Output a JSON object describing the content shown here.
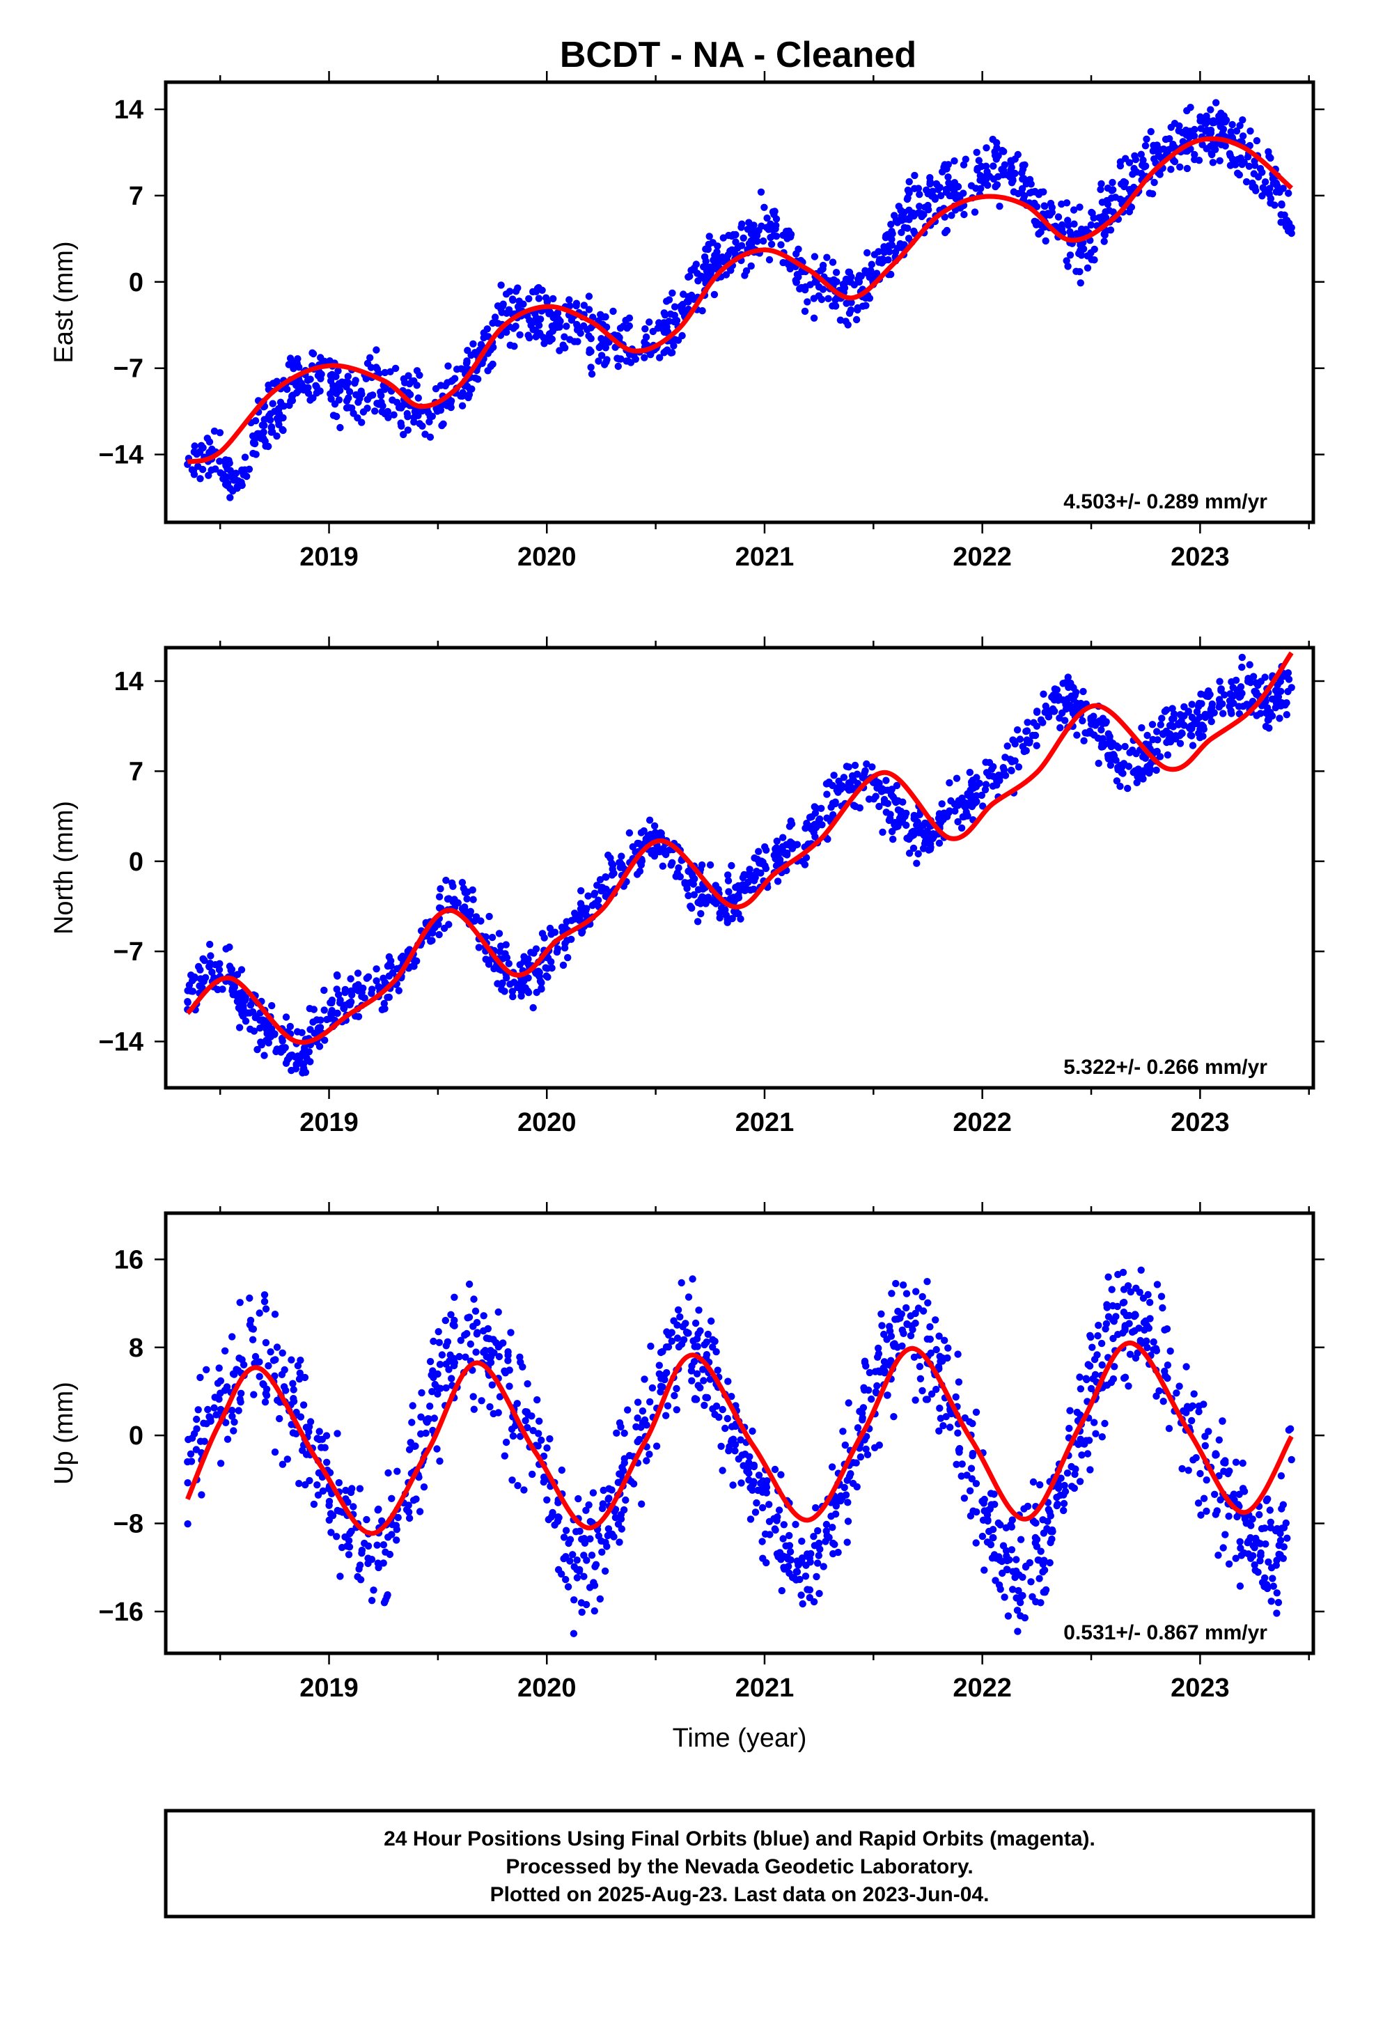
{
  "title": "BCDT  - NA - Cleaned",
  "xlabel": "Time (year)",
  "footer": {
    "line1": "24 Hour Positions Using Final Orbits (blue) and Rapid Orbits (magenta).",
    "line2": "Processed by the Nevada Geodetic Laboratory.",
    "line3": "Plotted on 2025-Aug-23. Last data on 2023-Jun-04."
  },
  "colors": {
    "points": "#0000ff",
    "fit": "#ff0000",
    "frame": "#000000"
  },
  "chart_data": [
    {
      "type": "scatter",
      "ylabel": "East (mm)",
      "rate": "4.503+/- 0.289 mm/yr",
      "xlim": [
        2018.25,
        2023.52
      ],
      "ylim": [
        -19.5,
        16.2
      ],
      "xticks": [
        2019,
        2020,
        2021,
        2022,
        2023
      ],
      "xtick_labels": [
        "2019",
        "2020",
        "2021",
        "2022",
        "2023"
      ],
      "yticks": [
        -14,
        -7,
        0,
        7,
        14
      ],
      "ytick_labels": [
        "−14",
        "−7",
        "0",
        "7",
        "14"
      ],
      "grid": false,
      "series": [
        {
          "kind": "points",
          "color": "#0000ff",
          "x": [
            2018.35,
            2018.45,
            2018.55,
            2018.6,
            2018.65,
            2018.75,
            2018.85,
            2018.95,
            2019.05,
            2019.15,
            2019.25,
            2019.35,
            2019.45,
            2019.55,
            2019.65,
            2019.75,
            2019.8,
            2019.85,
            2019.95,
            2020.05,
            2020.15,
            2020.25,
            2020.35,
            2020.45,
            2020.55,
            2020.65,
            2020.75,
            2020.85,
            2020.95,
            2021.05,
            2021.15,
            2021.25,
            2021.35,
            2021.45,
            2021.55,
            2021.65,
            2021.75,
            2021.85,
            2021.95,
            2022.05,
            2022.15,
            2022.25,
            2022.35,
            2022.45,
            2022.55,
            2022.65,
            2022.75,
            2022.85,
            2022.95,
            2023.05,
            2023.15,
            2023.25,
            2023.35,
            2023.42
          ],
          "y": [
            -14.8,
            -13.9,
            -15.8,
            -16.5,
            -12.5,
            -10.5,
            -8.2,
            -7.6,
            -8.8,
            -9.1,
            -8.4,
            -9.9,
            -10.3,
            -9.5,
            -7.2,
            -4.9,
            -1.8,
            -2.6,
            -3.0,
            -3.4,
            -3.8,
            -4.6,
            -5.1,
            -5.3,
            -4.1,
            -1.2,
            1.2,
            2.6,
            3.7,
            4.3,
            0.6,
            -0.4,
            -0.9,
            -0.6,
            2.4,
            5.1,
            6.2,
            7.0,
            7.8,
            9.4,
            8.8,
            6.1,
            4.1,
            3.0,
            4.9,
            7.8,
            9.4,
            10.4,
            11.9,
            12.3,
            11.4,
            9.8,
            7.3,
            4.4
          ]
        },
        {
          "kind": "fit",
          "color": "#ff0000",
          "x": [
            2018.35,
            2018.5,
            2018.75,
            2019.0,
            2019.25,
            2019.42,
            2019.6,
            2019.8,
            2020.0,
            2020.2,
            2020.4,
            2020.6,
            2020.8,
            2021.0,
            2021.2,
            2021.4,
            2021.6,
            2021.8,
            2022.0,
            2022.2,
            2022.4,
            2022.6,
            2022.8,
            2023.0,
            2023.2,
            2023.42
          ],
          "y": [
            -14.6,
            -13.8,
            -8.8,
            -6.8,
            -8.0,
            -10.1,
            -8.4,
            -3.6,
            -2.0,
            -3.2,
            -5.6,
            -3.9,
            0.9,
            2.6,
            1.0,
            -1.3,
            1.6,
            5.4,
            6.9,
            6.2,
            3.4,
            5.1,
            9.2,
            11.5,
            10.9,
            7.6
          ]
        }
      ]
    },
    {
      "type": "scatter",
      "ylabel": "North (mm)",
      "rate": "5.322+/- 0.266 mm/yr",
      "xlim": [
        2018.25,
        2023.52
      ],
      "ylim": [
        -17.6,
        16.6
      ],
      "xticks": [
        2019,
        2020,
        2021,
        2022,
        2023
      ],
      "xtick_labels": [
        "2019",
        "2020",
        "2021",
        "2022",
        "2023"
      ],
      "yticks": [
        -14,
        -7,
        0,
        7,
        14
      ],
      "ytick_labels": [
        "−14",
        "−7",
        "0",
        "7",
        "14"
      ],
      "grid": false,
      "series": [
        {
          "kind": "points",
          "color": "#0000ff",
          "x": [
            2018.35,
            2018.45,
            2018.55,
            2018.65,
            2018.75,
            2018.85,
            2018.95,
            2019.05,
            2019.15,
            2019.25,
            2019.35,
            2019.45,
            2019.55,
            2019.65,
            2019.75,
            2019.85,
            2019.95,
            2020.05,
            2020.15,
            2020.25,
            2020.35,
            2020.45,
            2020.55,
            2020.65,
            2020.75,
            2020.85,
            2020.95,
            2021.05,
            2021.15,
            2021.25,
            2021.35,
            2021.45,
            2021.55,
            2021.65,
            2021.75,
            2021.85,
            2021.95,
            2022.05,
            2022.15,
            2022.25,
            2022.35,
            2022.45,
            2022.55,
            2022.65,
            2022.75,
            2022.85,
            2022.95,
            2023.05,
            2023.15,
            2023.25,
            2023.35,
            2023.42
          ],
          "y": [
            -10.9,
            -8.2,
            -9.4,
            -11.7,
            -13.4,
            -15.2,
            -13.0,
            -11.0,
            -10.5,
            -9.8,
            -7.6,
            -5.8,
            -2.9,
            -3.9,
            -7.2,
            -9.4,
            -8.7,
            -6.8,
            -4.6,
            -2.3,
            -0.5,
            1.4,
            1.6,
            -1.7,
            -3.0,
            -3.1,
            -1.1,
            0.2,
            1.3,
            3.2,
            5.6,
            6.5,
            4.8,
            2.8,
            1.9,
            3.9,
            5.0,
            6.6,
            7.8,
            10.5,
            12.8,
            11.8,
            9.5,
            7.6,
            8.2,
            10.0,
            10.4,
            11.8,
            12.8,
            13.2,
            12.5,
            13.5
          ]
        },
        {
          "kind": "fit",
          "color": "#ff0000",
          "x": [
            2018.35,
            2018.55,
            2018.85,
            2019.1,
            2019.3,
            2019.55,
            2019.85,
            2020.05,
            2020.25,
            2020.52,
            2020.85,
            2021.05,
            2021.25,
            2021.55,
            2021.85,
            2022.05,
            2022.25,
            2022.52,
            2022.85,
            2023.05,
            2023.25,
            2023.42
          ],
          "y": [
            -11.8,
            -9.1,
            -14.0,
            -11.8,
            -9.3,
            -3.8,
            -8.8,
            -6.1,
            -3.8,
            1.6,
            -3.5,
            -0.9,
            1.6,
            6.9,
            1.8,
            4.5,
            6.9,
            12.1,
            7.2,
            9.5,
            12.0,
            16.2
          ]
        }
      ]
    },
    {
      "type": "scatter",
      "ylabel": "Up (mm)",
      "rate": "0.531+/- 0.867 mm/yr",
      "xlim": [
        2018.25,
        2023.52
      ],
      "ylim": [
        -19.8,
        20.2
      ],
      "xticks": [
        2019,
        2020,
        2021,
        2022,
        2023
      ],
      "xtick_labels": [
        "2019",
        "2020",
        "2021",
        "2022",
        "2023"
      ],
      "yticks": [
        -16,
        -8,
        0,
        8,
        16
      ],
      "ytick_labels": [
        "−16",
        "−8",
        "0",
        "8",
        "16"
      ],
      "grid": false,
      "series": [
        {
          "kind": "points",
          "color": "#0000ff",
          "x": [
            2018.35,
            2018.45,
            2018.55,
            2018.65,
            2018.75,
            2018.85,
            2018.95,
            2019.05,
            2019.15,
            2019.25,
            2019.35,
            2019.45,
            2019.55,
            2019.65,
            2019.75,
            2019.85,
            2019.95,
            2020.05,
            2020.15,
            2020.25,
            2020.35,
            2020.45,
            2020.55,
            2020.65,
            2020.75,
            2020.85,
            2020.95,
            2021.05,
            2021.15,
            2021.25,
            2021.35,
            2021.45,
            2021.55,
            2021.65,
            2021.75,
            2021.85,
            2021.95,
            2022.05,
            2022.15,
            2022.25,
            2022.35,
            2022.45,
            2022.55,
            2022.65,
            2022.75,
            2022.85,
            2022.95,
            2023.05,
            2023.15,
            2023.25,
            2023.35,
            2023.42
          ],
          "y": [
            -2.4,
            1.7,
            3.9,
            8.7,
            5.4,
            2.1,
            -2.3,
            -6.9,
            -10.7,
            -11.6,
            -5.3,
            1.2,
            6.0,
            8.3,
            7.5,
            2.4,
            -0.9,
            -7.8,
            -12.2,
            -9.6,
            -4.6,
            1.4,
            5.7,
            9.3,
            5.1,
            0.8,
            -4.2,
            -8.6,
            -12.4,
            -9.8,
            -5.5,
            1.6,
            6.7,
            11.6,
            7.2,
            2.8,
            -3.0,
            -9.3,
            -12.9,
            -10.1,
            -4.8,
            1.1,
            6.4,
            11.2,
            10.4,
            5.2,
            0.7,
            -2.9,
            -6.4,
            -10.2,
            -11.8,
            -2.2
          ]
        },
        {
          "kind": "fit",
          "color": "#ff0000",
          "x": [
            2018.35,
            2018.5,
            2018.68,
            2018.95,
            2019.2,
            2019.45,
            2019.68,
            2019.95,
            2020.2,
            2020.45,
            2020.67,
            2020.95,
            2021.2,
            2021.45,
            2021.68,
            2021.95,
            2022.2,
            2022.45,
            2022.68,
            2022.95,
            2023.2,
            2023.42
          ],
          "y": [
            -5.8,
            1.2,
            6.1,
            -2.4,
            -8.9,
            -1.5,
            6.6,
            -1.6,
            -8.4,
            -0.6,
            7.3,
            -1.0,
            -7.7,
            0.2,
            7.9,
            -0.4,
            -7.6,
            0.9,
            8.4,
            0.3,
            -7.0,
            -0.1
          ]
        }
      ]
    }
  ]
}
